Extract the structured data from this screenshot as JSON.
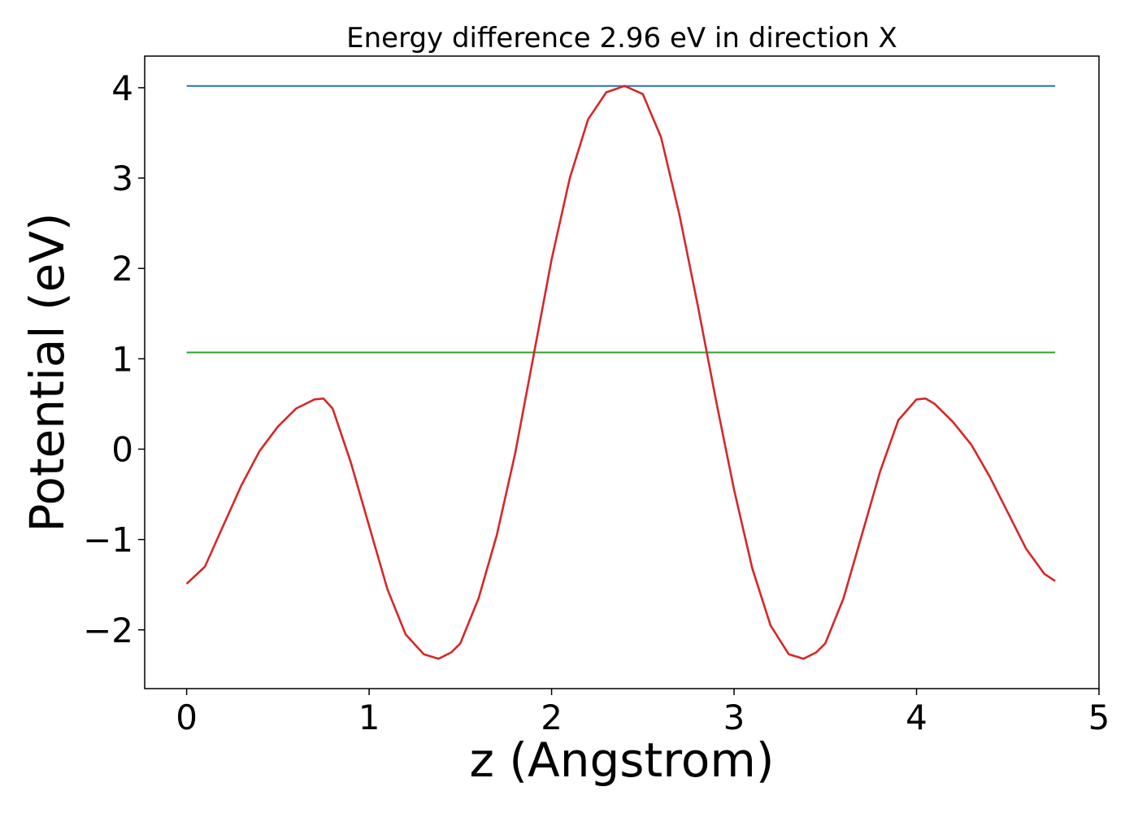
{
  "chart_data": {
    "type": "line",
    "title": "Energy difference 2.96 eV in direction X",
    "xlabel": "z (Angstrom)",
    "ylabel": "Potential (eV)",
    "xlim": [
      -0.23,
      5
    ],
    "ylim": [
      -2.65,
      4.35
    ],
    "xticks": [
      0,
      1,
      2,
      3,
      4,
      5
    ],
    "yticks": [
      -2,
      -1,
      0,
      1,
      2,
      3,
      4
    ],
    "xtick_labels": [
      "0",
      "1",
      "2",
      "3",
      "4",
      "5"
    ],
    "ytick_labels": [
      "−2",
      "−1",
      "0",
      "1",
      "2",
      "3",
      "4"
    ],
    "grid": false,
    "legend": "none",
    "series": [
      {
        "color": "#d62728",
        "x": [
          0,
          0.1,
          0.2,
          0.3,
          0.4,
          0.5,
          0.6,
          0.7,
          0.75,
          0.8,
          0.9,
          1.0,
          1.1,
          1.2,
          1.3,
          1.38,
          1.45,
          1.5,
          1.6,
          1.7,
          1.8,
          1.9,
          2.0,
          2.1,
          2.2,
          2.3,
          2.4,
          2.5,
          2.6,
          2.7,
          2.8,
          2.9,
          3.0,
          3.1,
          3.2,
          3.3,
          3.38,
          3.45,
          3.5,
          3.6,
          3.7,
          3.8,
          3.9,
          4.0,
          4.05,
          4.1,
          4.2,
          4.3,
          4.4,
          4.5,
          4.6,
          4.7,
          4.76
        ],
        "y": [
          -1.49,
          -1.3,
          -0.85,
          -0.4,
          -0.02,
          0.25,
          0.45,
          0.55,
          0.56,
          0.45,
          -0.15,
          -0.85,
          -1.55,
          -2.05,
          -2.27,
          -2.32,
          -2.25,
          -2.15,
          -1.65,
          -0.95,
          -0.05,
          1.02,
          2.1,
          3.0,
          3.65,
          3.95,
          4.02,
          3.93,
          3.45,
          2.6,
          1.6,
          0.55,
          -0.45,
          -1.32,
          -1.95,
          -2.27,
          -2.32,
          -2.25,
          -2.15,
          -1.65,
          -0.95,
          -0.25,
          0.32,
          0.55,
          0.56,
          0.5,
          0.3,
          0.05,
          -0.3,
          -0.7,
          -1.1,
          -1.38,
          -1.46
        ]
      },
      {
        "color": "#1f77b4",
        "x": [
          0,
          4.76
        ],
        "y": [
          4.02,
          4.02
        ]
      },
      {
        "color": "#2ca02c",
        "x": [
          0,
          4.76
        ],
        "y": [
          1.07,
          1.07
        ]
      }
    ]
  }
}
